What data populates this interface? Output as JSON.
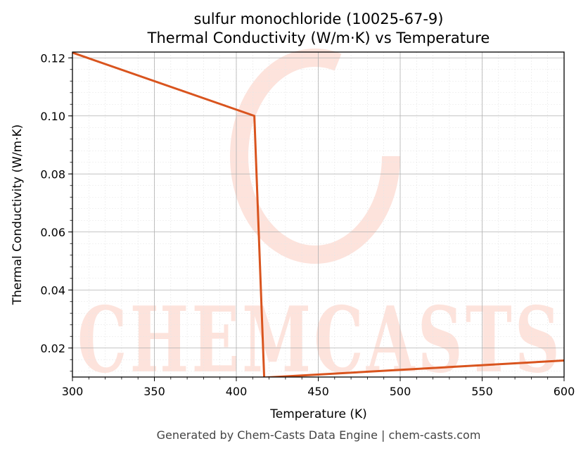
{
  "chart_data": {
    "type": "line",
    "title_line1": "sulfur monochloride (10025-67-9)",
    "title_line2": "Thermal Conductivity (W/m·K) vs Temperature",
    "xlabel": "Temperature (K)",
    "ylabel": "Thermal Conductivity (W/m·K)",
    "xlim": [
      300,
      600
    ],
    "ylim": [
      0.01,
      0.122
    ],
    "x_ticks": [
      300,
      350,
      400,
      450,
      500,
      550,
      600
    ],
    "y_ticks": [
      0.02,
      0.04,
      0.06,
      0.08,
      0.1,
      0.12
    ],
    "y_tick_labels": [
      "0.02",
      "0.04",
      "0.06",
      "0.08",
      "0.10",
      "0.12"
    ],
    "grid": true,
    "series": [
      {
        "color": "#d9541e",
        "x": [
          300,
          411,
          417,
          600
        ],
        "y": [
          0.1218,
          0.1,
          0.0098,
          0.0157
        ]
      }
    ]
  },
  "watermark": {
    "text": "CHEMCASTS",
    "color": "#fde3dc"
  },
  "footer": "Generated by Chem-Casts Data Engine | chem-casts.com"
}
